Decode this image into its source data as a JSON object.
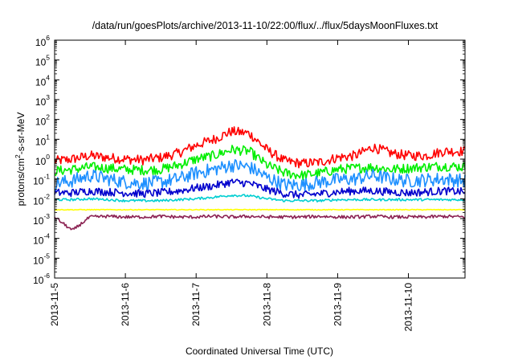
{
  "chart_data": {
    "type": "line",
    "title": "/data/run/goesPlots/archive/2013-11-10/22:00/flux/../flux/5daysMoonFluxes.txt",
    "xlabel": "Coordinated Universal Time (UTC)",
    "ylabel_parts": {
      "base": "protons/cm",
      "sup": "2",
      "rest": "-s-sr-MeV"
    },
    "x_ticks": [
      "2013-11-5",
      "2013-11-6",
      "2013-11-7",
      "2013-11-8",
      "2013-11-9",
      "2013-11-10"
    ],
    "x_tick_days": [
      0,
      1,
      2,
      3,
      4,
      5
    ],
    "xlim_days": [
      0,
      5.8
    ],
    "y_scale": "log",
    "ylim": [
      1e-06,
      1000000.0
    ],
    "y_tick_base": "10",
    "y_tick_exponents": [
      "-6",
      "-5",
      "-4",
      "-3",
      "-2",
      "-1",
      "0",
      "1",
      "2",
      "3",
      "4",
      "5",
      "6"
    ],
    "legend": "none",
    "grid": false,
    "x": [
      0,
      0.25,
      0.5,
      0.75,
      1,
      1.25,
      1.5,
      1.75,
      2,
      2.25,
      2.5,
      2.75,
      3,
      3.25,
      3.5,
      3.75,
      4,
      4.25,
      4.5,
      4.75,
      5,
      5.25,
      5.5,
      5.8
    ],
    "series": [
      {
        "color": "#ff0000",
        "values": [
          0.8,
          1.0,
          1.5,
          1.2,
          1.0,
          0.9,
          1.2,
          2,
          5,
          10,
          25,
          20,
          3,
          0.8,
          0.6,
          0.7,
          1.2,
          1.5,
          4,
          2,
          1.5,
          1.5,
          2.5,
          2.5
        ]
      },
      {
        "color": "#00ee00",
        "values": [
          0.25,
          0.3,
          0.4,
          0.35,
          0.3,
          0.28,
          0.3,
          0.5,
          1.0,
          1.5,
          3,
          2.5,
          0.5,
          0.2,
          0.15,
          0.2,
          0.3,
          0.35,
          0.4,
          0.3,
          0.35,
          0.4,
          0.45,
          0.4
        ]
      },
      {
        "color": "#1e90ff",
        "values": [
          0.06,
          0.08,
          0.15,
          0.1,
          0.07,
          0.06,
          0.07,
          0.1,
          0.2,
          0.3,
          0.5,
          0.4,
          0.12,
          0.05,
          0.05,
          0.07,
          0.09,
          0.1,
          0.15,
          0.1,
          0.08,
          0.09,
          0.1,
          0.08
        ]
      },
      {
        "color": "#0000cd",
        "values": [
          0.02,
          0.02,
          0.025,
          0.022,
          0.02,
          0.018,
          0.02,
          0.025,
          0.035,
          0.045,
          0.07,
          0.06,
          0.03,
          0.018,
          0.015,
          0.018,
          0.022,
          0.025,
          0.025,
          0.022,
          0.02,
          0.022,
          0.025,
          0.022
        ]
      },
      {
        "color": "#00ced1",
        "values": [
          0.009,
          0.009,
          0.01,
          0.009,
          0.008,
          0.008,
          0.008,
          0.009,
          0.01,
          0.012,
          0.015,
          0.014,
          0.01,
          0.008,
          0.008,
          0.008,
          0.009,
          0.009,
          0.009,
          0.009,
          0.009,
          0.009,
          0.009,
          0.009
        ]
      },
      {
        "color": "#ffff00",
        "values": [
          0.0028,
          0.0028,
          0.0028,
          0.0028,
          0.0028,
          0.0028,
          0.0028,
          0.0028,
          0.0028,
          0.0028,
          0.0028,
          0.0028,
          0.0028,
          0.0028,
          0.0028,
          0.0028,
          0.0028,
          0.0028,
          0.0028,
          0.0028,
          0.0028,
          0.0028,
          0.0028,
          0.0028
        ]
      },
      {
        "color": "#8b2252",
        "values": [
          0.0012,
          0.00025,
          0.0012,
          0.0013,
          0.0012,
          0.0012,
          0.0013,
          0.0012,
          0.0012,
          0.0013,
          0.0012,
          0.0013,
          0.0012,
          0.0012,
          0.0012,
          0.0013,
          0.0012,
          0.0012,
          0.0013,
          0.0012,
          0.0012,
          0.0012,
          0.0013,
          0.0012
        ]
      }
    ]
  }
}
